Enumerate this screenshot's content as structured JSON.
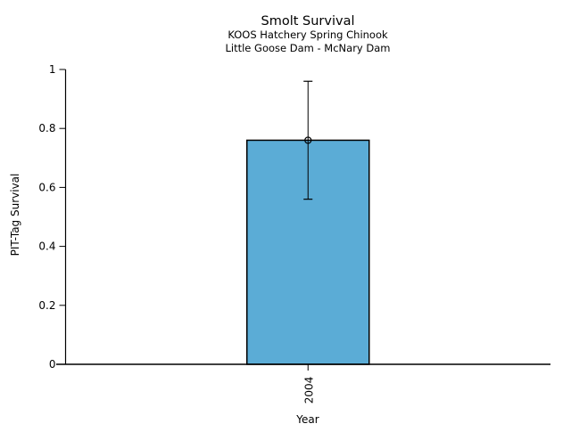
{
  "chart_data": {
    "type": "bar",
    "title": "Smolt Survival",
    "subtitles": [
      "KOOS Hatchery Spring Chinook",
      "Little Goose Dam - McNary Dam"
    ],
    "xlabel": "Year",
    "ylabel": "PIT-Tag Survival",
    "categories": [
      "2004"
    ],
    "values": [
      0.76
    ],
    "error_low": [
      0.56
    ],
    "error_high": [
      0.96
    ],
    "ylim": [
      0,
      1
    ],
    "yticks": [
      0,
      0.2,
      0.4,
      0.6,
      0.8,
      1
    ],
    "ytick_labels": [
      "0",
      "0.2",
      "0.4",
      "0.6",
      "0.8",
      "1"
    ],
    "bar_color": "#5BACD6",
    "bar_edge_color": "#000000",
    "error_color": "#000000",
    "marker": "open-circle",
    "grid": false,
    "legend": null
  }
}
